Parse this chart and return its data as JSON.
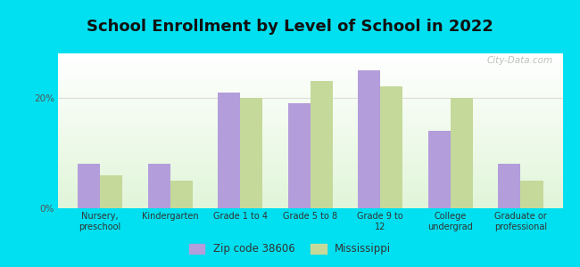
{
  "title": "School Enrollment by Level of School in 2022",
  "categories": [
    "Nursery,\npreschool",
    "Kindergarten",
    "Grade 1 to 4",
    "Grade 5 to 8",
    "Grade 9 to\n12",
    "College\nundergrad",
    "Graduate or\nprofessional"
  ],
  "zip_values": [
    8.0,
    8.0,
    21.0,
    19.0,
    25.0,
    14.0,
    8.0
  ],
  "ms_values": [
    6.0,
    5.0,
    20.0,
    23.0,
    22.0,
    20.0,
    5.0
  ],
  "zip_color": "#b39ddb",
  "ms_color": "#c5d99a",
  "background_outer": "#00e0f0",
  "grid_color": "#dddddd",
  "title_fontsize": 13,
  "tick_fontsize": 7.5,
  "legend_label_zip": "Zip code 38606",
  "legend_label_ms": "Mississippi",
  "ylim": [
    0,
    28
  ],
  "yticks": [
    0,
    20
  ],
  "ytick_labels": [
    "0%",
    "20%"
  ],
  "bar_width": 0.32,
  "watermark": "City-Data.com"
}
